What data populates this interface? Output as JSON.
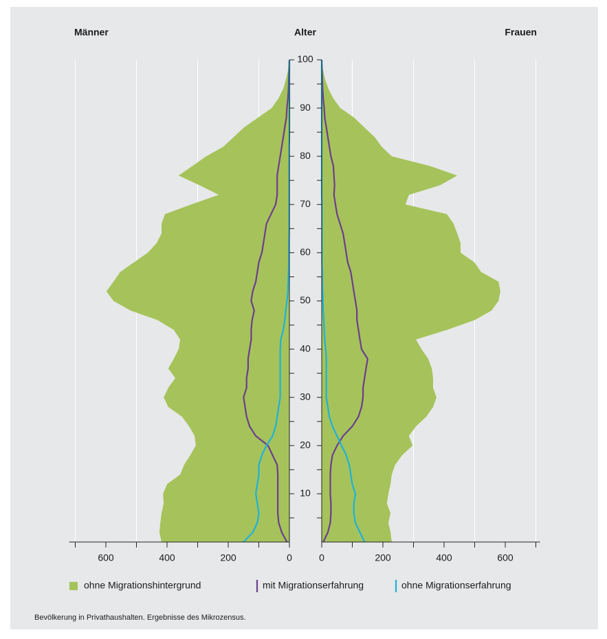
{
  "chart_data": {
    "type": "pyramid",
    "label_left": "Männer",
    "label_center": "Alter",
    "label_right": "Frauen",
    "note": "Bevölkerung in Privathaushalten. Ergebnisse des Mikrozensus.",
    "ages": [
      0,
      2,
      4,
      6,
      8,
      10,
      12,
      14,
      16,
      18,
      20,
      22,
      24,
      26,
      28,
      30,
      32,
      34,
      36,
      38,
      40,
      42,
      44,
      46,
      48,
      50,
      52,
      54,
      56,
      58,
      60,
      62,
      64,
      66,
      68,
      70,
      72,
      74,
      76,
      78,
      80,
      82,
      84,
      86,
      88,
      90,
      92,
      94,
      96,
      98,
      100
    ],
    "series": [
      {
        "name": "ohne Migrationshintergrund",
        "color": "#a5c35a",
        "kind": "area",
        "left": [
          418,
          425,
          422,
          418,
          411,
          413,
          400,
          357,
          344,
          324,
          306,
          310,
          328,
          351,
          396,
          411,
          396,
          373,
          396,
          378,
          362,
          357,
          378,
          430,
          519,
          575,
          598,
          575,
          553,
          508,
          463,
          434,
          418,
          418,
          407,
          321,
          231,
          294,
          362,
          317,
          272,
          216,
          182,
          148,
          103,
          58,
          36,
          20,
          11,
          4,
          2
        ],
        "right": [
          229,
          225,
          218,
          225,
          213,
          218,
          225,
          229,
          240,
          263,
          297,
          285,
          308,
          342,
          364,
          375,
          364,
          364,
          360,
          348,
          326,
          308,
          409,
          499,
          555,
          578,
          584,
          578,
          521,
          499,
          454,
          454,
          443,
          431,
          409,
          274,
          285,
          387,
          443,
          353,
          229,
          196,
          173,
          139,
          106,
          61,
          38,
          22,
          11,
          4,
          0
        ]
      },
      {
        "name": "mit Migrationserfahrung",
        "color": "#6b3d8e",
        "kind": "line",
        "left": [
          8,
          25,
          35,
          38,
          38,
          38,
          38,
          38,
          40,
          55,
          70,
          110,
          130,
          140,
          145,
          150,
          140,
          140,
          135,
          135,
          130,
          125,
          125,
          122,
          115,
          125,
          120,
          110,
          105,
          100,
          90,
          85,
          80,
          75,
          60,
          45,
          40,
          40,
          40,
          35,
          30,
          25,
          20,
          15,
          10,
          8,
          5,
          3,
          2,
          1,
          0
        ],
        "right": [
          5,
          20,
          28,
          30,
          30,
          28,
          28,
          28,
          30,
          35,
          50,
          70,
          100,
          120,
          130,
          135,
          135,
          140,
          145,
          150,
          130,
          125,
          120,
          115,
          115,
          110,
          105,
          100,
          95,
          85,
          80,
          75,
          70,
          60,
          50,
          45,
          40,
          42,
          40,
          38,
          30,
          25,
          20,
          15,
          10,
          8,
          5,
          3,
          2,
          1,
          0
        ]
      },
      {
        "name": "ohne Migrationserfahrung",
        "color": "#1eb1d9",
        "kind": "line",
        "left": [
          150,
          120,
          105,
          100,
          105,
          110,
          105,
          100,
          100,
          90,
          75,
          55,
          45,
          40,
          35,
          30,
          30,
          30,
          30,
          30,
          30,
          28,
          20,
          15,
          12,
          8,
          5,
          4,
          3,
          2,
          2,
          2,
          1,
          1,
          1,
          1,
          1,
          1,
          1,
          1,
          1,
          1,
          0,
          0,
          0,
          0,
          0,
          0,
          0,
          0,
          0
        ],
        "right": [
          140,
          125,
          110,
          105,
          105,
          110,
          100,
          95,
          90,
          80,
          65,
          50,
          35,
          25,
          20,
          15,
          15,
          15,
          15,
          15,
          13,
          10,
          8,
          7,
          5,
          4,
          3,
          2,
          2,
          1,
          1,
          1,
          1,
          1,
          1,
          1,
          0,
          0,
          0,
          0,
          0,
          0,
          0,
          0,
          0,
          0,
          0,
          0,
          0,
          0,
          0
        ]
      }
    ],
    "xlim": [
      0,
      700
    ],
    "xticks": [
      0,
      200,
      400,
      600
    ],
    "minor_xticks": [
      100,
      300,
      500,
      700
    ],
    "grid_xticks": [
      100,
      300,
      500,
      700
    ],
    "ylim": [
      0,
      100
    ],
    "yticks": [
      10,
      20,
      30,
      40,
      50,
      60,
      70,
      80,
      90,
      100
    ],
    "minor_yticks": [
      5,
      15,
      25,
      35,
      45,
      55,
      65,
      75,
      85,
      95
    ]
  }
}
